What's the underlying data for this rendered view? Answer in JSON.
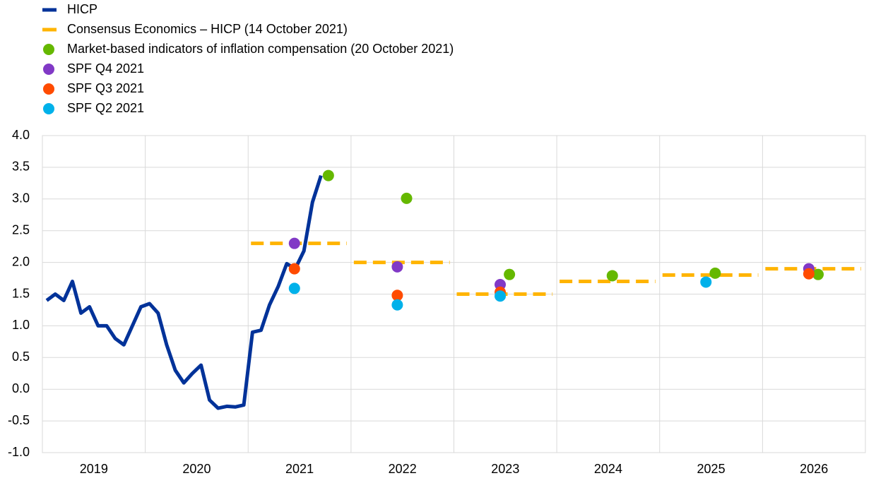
{
  "chart_data": {
    "type": "line",
    "xlim": [
      2019,
      2027
    ],
    "xticks": [
      2019,
      2020,
      2021,
      2022,
      2023,
      2024,
      2025,
      2026
    ],
    "ylim": [
      -1,
      4
    ],
    "yticks": [
      {
        "value": -1,
        "label": "-1.0"
      },
      {
        "value": -0.5,
        "label": "-0.5"
      },
      {
        "value": 0,
        "label": "0.0"
      },
      {
        "value": 0.5,
        "label": "0.5"
      },
      {
        "value": 1,
        "label": "1.0"
      },
      {
        "value": 1.5,
        "label": "1.5"
      },
      {
        "value": 2,
        "label": "2.0"
      },
      {
        "value": 2.5,
        "label": "2.5"
      },
      {
        "value": 3,
        "label": "3.0"
      },
      {
        "value": 3.5,
        "label": "3.5"
      },
      {
        "value": 4,
        "label": "4.0"
      }
    ],
    "grid": true,
    "legend": "top-left",
    "series": [
      {
        "name": "HICP",
        "style": "line",
        "color": "#003299",
        "x": [
          2019.042,
          2019.125,
          2019.208,
          2019.292,
          2019.375,
          2019.458,
          2019.542,
          2019.625,
          2019.708,
          2019.792,
          2019.875,
          2019.958,
          2020.042,
          2020.125,
          2020.208,
          2020.292,
          2020.375,
          2020.458,
          2020.542,
          2020.625,
          2020.708,
          2020.792,
          2020.875,
          2020.958,
          2021.042,
          2021.125,
          2021.208,
          2021.292,
          2021.375,
          2021.458,
          2021.542,
          2021.625,
          2021.708
        ],
        "values": [
          1.4,
          1.5,
          1.4,
          1.7,
          1.2,
          1.3,
          1.0,
          1.0,
          0.8,
          0.7,
          1.0,
          1.3,
          1.35,
          1.2,
          0.7,
          0.3,
          0.1,
          0.25,
          0.38,
          -0.17,
          -0.3,
          -0.27,
          -0.28,
          -0.25,
          0.9,
          0.93,
          1.33,
          1.62,
          1.98,
          1.9,
          2.18,
          2.95,
          3.37
        ]
      },
      {
        "name": "Consensus Economics – HICP (14 October 2021)",
        "style": "dashed",
        "color": "#ffb400",
        "x": [
          2021,
          2022,
          2023,
          2024,
          2025,
          2026
        ],
        "values": [
          2.3,
          2.0,
          1.5,
          1.7,
          1.8,
          1.9
        ]
      },
      {
        "name": "Market-based indicators of inflation compensation (20 October 2021)",
        "style": "dot",
        "color": "#65b800",
        "x": [
          2021.78,
          2022.54,
          2023.54,
          2024.54,
          2025.54,
          2026.54
        ],
        "values": [
          3.37,
          3.01,
          1.81,
          1.79,
          1.83,
          1.81
        ]
      },
      {
        "name": "SPF Q4 2021",
        "style": "dot",
        "color": "#8139c6",
        "x": [
          2021.45,
          2022.45,
          2023.45,
          2026.45
        ],
        "values": [
          2.3,
          1.93,
          1.65,
          1.9
        ]
      },
      {
        "name": "SPF Q3 2021",
        "style": "dot",
        "color": "#ff4b00",
        "x": [
          2021.45,
          2022.45,
          2023.45,
          2026.45
        ],
        "values": [
          1.9,
          1.48,
          1.53,
          1.82
        ]
      },
      {
        "name": "SPF Q2 2021",
        "style": "dot",
        "color": "#00b1ea",
        "x": [
          2021.45,
          2022.45,
          2023.45,
          2025.45
        ],
        "values": [
          1.59,
          1.33,
          1.47,
          1.69
        ]
      }
    ]
  }
}
